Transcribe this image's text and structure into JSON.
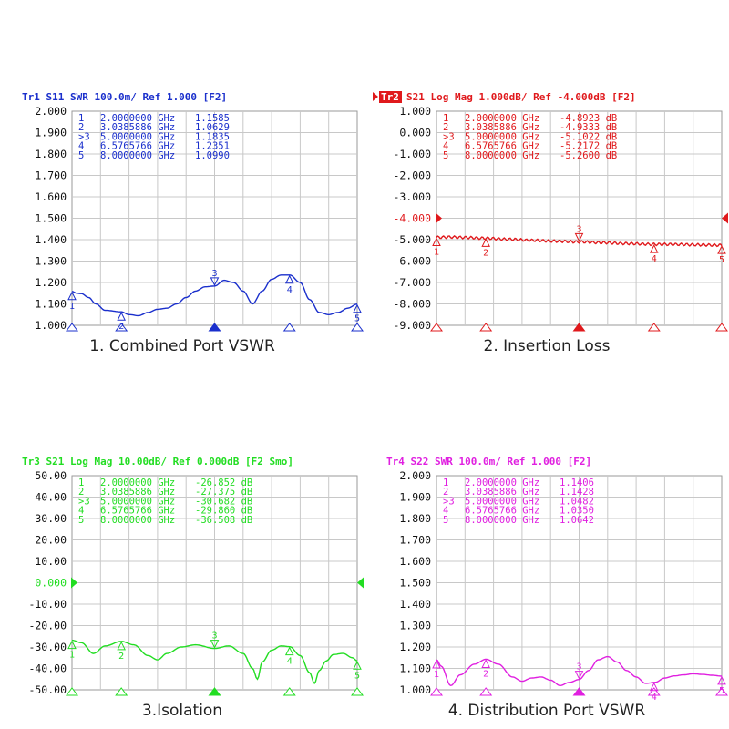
{
  "panels": [
    {
      "header": "Tr1 S11 SWR 100.0m/ Ref 1.000 [F2]",
      "header_tag": "",
      "color": "#1a2fcc",
      "caption": "1. Combined Port VSWR",
      "chart_data": {
        "type": "line",
        "xlim": [
          2.0,
          8.0
        ],
        "ylim": [
          1.0,
          2.0
        ],
        "yticks": [
          "2.000",
          "1.900",
          "1.800",
          "1.700",
          "1.600",
          "1.500",
          "1.400",
          "1.300",
          "1.200",
          "1.100",
          "1.000"
        ],
        "ref_label": "",
        "ref_value": null,
        "x": [
          2.0,
          2.1,
          2.2,
          2.35,
          2.5,
          2.7,
          3.04,
          3.2,
          3.4,
          3.6,
          3.8,
          4.0,
          4.2,
          4.4,
          4.6,
          4.8,
          5.0,
          5.2,
          5.4,
          5.6,
          5.8,
          6.0,
          6.2,
          6.4,
          6.58,
          6.8,
          7.0,
          7.2,
          7.4,
          7.6,
          7.8,
          8.0
        ],
        "y": [
          1.1585,
          1.15,
          1.148,
          1.13,
          1.1,
          1.07,
          1.0629,
          1.05,
          1.045,
          1.06,
          1.075,
          1.08,
          1.1,
          1.13,
          1.16,
          1.18,
          1.1835,
          1.21,
          1.2,
          1.16,
          1.1,
          1.16,
          1.215,
          1.235,
          1.2351,
          1.2,
          1.12,
          1.06,
          1.05,
          1.06,
          1.08,
          1.099
        ],
        "markers": [
          {
            "n": "1",
            "freq": "2.0000000 GHz",
            "val": "1.1585"
          },
          {
            "n": "2",
            "freq": "3.0385886 GHz",
            "val": "1.0629"
          },
          {
            "n": "3",
            "freq": "5.0000000 GHz",
            "val": "1.1835"
          },
          {
            "n": "4",
            "freq": "6.5765766 GHz",
            "val": "1.2351"
          },
          {
            "n": "5",
            "freq": "8.0000000 GHz",
            "val": "1.0990"
          }
        ],
        "marker_x": [
          2.0,
          3.0385886,
          5.0,
          6.5765766,
          8.0
        ],
        "marker_y": [
          1.1585,
          1.0629,
          1.1835,
          1.2351,
          1.099
        ],
        "unit": ""
      }
    },
    {
      "header": "S21 Log Mag 1.000dB/ Ref -4.000dB [F2]",
      "header_tag": "Tr2",
      "color": "#e0191c",
      "caption": "2. Insertion Loss",
      "chart_data": {
        "type": "line",
        "xlim": [
          2.0,
          8.0
        ],
        "ylim": [
          -9.0,
          1.0
        ],
        "yticks": [
          "1.000",
          "0.000",
          "-1.000",
          "-2.000",
          "-3.000",
          "-4.000",
          "-5.000",
          "-6.000",
          "-7.000",
          "-8.000",
          "-9.000"
        ],
        "ref_label": "-4.000",
        "ref_value": -4.0,
        "x": [
          2.0,
          2.3,
          2.6,
          3.04,
          3.5,
          4.0,
          4.5,
          5.0,
          5.5,
          6.0,
          6.58,
          7.0,
          7.5,
          8.0
        ],
        "y": [
          -4.8923,
          -4.88,
          -4.9,
          -4.9333,
          -4.98,
          -5.03,
          -5.07,
          -5.1022,
          -5.14,
          -5.18,
          -5.2172,
          -5.22,
          -5.24,
          -5.26
        ],
        "ripple": 0.06,
        "markers": [
          {
            "n": "1",
            "freq": "2.0000000 GHz",
            "val": "-4.8923 dB"
          },
          {
            "n": "2",
            "freq": "3.0385886 GHz",
            "val": "-4.9333 dB"
          },
          {
            "n": "3",
            "freq": "5.0000000 GHz",
            "val": "-5.1022 dB"
          },
          {
            "n": "4",
            "freq": "6.5765766 GHz",
            "val": "-5.2172 dB"
          },
          {
            "n": "5",
            "freq": "8.0000000 GHz",
            "val": "-5.2600 dB"
          }
        ],
        "marker_x": [
          2.0,
          3.0385886,
          5.0,
          6.5765766,
          8.0
        ],
        "marker_y": [
          -4.8923,
          -4.9333,
          -5.1022,
          -5.2172,
          -5.26
        ],
        "unit": ""
      }
    },
    {
      "header": "Tr3 S21 Log Mag 10.00dB/ Ref 0.000dB [F2 Smo]",
      "header_tag": "",
      "color": "#22dd22",
      "caption": "3.Isolation",
      "chart_data": {
        "type": "line",
        "xlim": [
          2.0,
          8.0
        ],
        "ylim": [
          -50.0,
          50.0
        ],
        "yticks": [
          "50.00",
          "40.00",
          "30.00",
          "20.00",
          "10.00",
          "0.000",
          "-10.00",
          "-20.00",
          "-30.00",
          "-40.00",
          "-50.00"
        ],
        "ref_label": "0.000",
        "ref_value": 0.0,
        "x": [
          2.0,
          2.2,
          2.45,
          2.7,
          3.04,
          3.3,
          3.6,
          3.8,
          4.0,
          4.3,
          4.6,
          5.0,
          5.3,
          5.6,
          5.8,
          5.9,
          6.0,
          6.2,
          6.4,
          6.58,
          6.8,
          7.0,
          7.1,
          7.2,
          7.35,
          7.5,
          7.7,
          7.9,
          8.0
        ],
        "y": [
          -26.85,
          -28,
          -33,
          -29.5,
          -27.375,
          -29,
          -34,
          -36,
          -33,
          -30,
          -29,
          -30.68,
          -29.5,
          -33,
          -40,
          -45,
          -37,
          -31.5,
          -29.5,
          -29.86,
          -34,
          -42,
          -47,
          -41,
          -36.5,
          -33.5,
          -33,
          -35,
          -36.5
        ],
        "markers": [
          {
            "n": "1",
            "freq": "2.0000000 GHz",
            "val": "-26.852 dB"
          },
          {
            "n": "2",
            "freq": "3.0385886 GHz",
            "val": "-27.375 dB"
          },
          {
            "n": "3",
            "freq": "5.0000000 GHz",
            "val": "-30.682 dB"
          },
          {
            "n": "4",
            "freq": "6.5765766 GHz",
            "val": "-29.860 dB"
          },
          {
            "n": "5",
            "freq": "8.0000000 GHz",
            "val": "-36.508 dB"
          }
        ],
        "marker_x": [
          2.0,
          3.0385886,
          5.0,
          6.5765766,
          8.0
        ],
        "marker_y": [
          -26.852,
          -27.375,
          -30.682,
          -29.86,
          -36.508
        ],
        "unit": ""
      }
    },
    {
      "header": "Tr4 S22 SWR 100.0m/ Ref 1.000 [F2]",
      "header_tag": "",
      "color": "#e020e0",
      "caption": "4. Distribution  Port VSWR",
      "chart_data": {
        "type": "line",
        "xlim": [
          2.0,
          8.0
        ],
        "ylim": [
          1.0,
          2.0
        ],
        "yticks": [
          "2.000",
          "1.900",
          "1.800",
          "1.700",
          "1.600",
          "1.500",
          "1.400",
          "1.300",
          "1.200",
          "1.100",
          "1.000"
        ],
        "ref_label": "",
        "ref_value": null,
        "x": [
          2.0,
          2.1,
          2.3,
          2.5,
          2.8,
          3.04,
          3.3,
          3.6,
          3.8,
          4.0,
          4.2,
          4.4,
          4.6,
          4.8,
          5.0,
          5.2,
          5.4,
          5.6,
          5.8,
          6.0,
          6.2,
          6.4,
          6.6,
          6.8,
          7.0,
          7.2,
          7.4,
          7.6,
          7.8,
          8.0
        ],
        "y": [
          1.1406,
          1.11,
          1.02,
          1.07,
          1.12,
          1.1428,
          1.12,
          1.06,
          1.04,
          1.055,
          1.06,
          1.045,
          1.02,
          1.035,
          1.0482,
          1.09,
          1.14,
          1.155,
          1.13,
          1.09,
          1.06,
          1.03,
          1.035,
          1.055,
          1.065,
          1.07,
          1.075,
          1.072,
          1.068,
          1.064
        ],
        "markers": [
          {
            "n": "1",
            "freq": "2.0000000 GHz",
            "val": "1.1406"
          },
          {
            "n": "2",
            "freq": "3.0385886 GHz",
            "val": "1.1428"
          },
          {
            "n": "3",
            "freq": "5.0000000 GHz",
            "val": "1.0482"
          },
          {
            "n": "4",
            "freq": "6.5765766 GHz",
            "val": "1.0350"
          },
          {
            "n": "5",
            "freq": "8.0000000 GHz",
            "val": "1.0642"
          }
        ],
        "marker_x": [
          2.0,
          3.0385886,
          5.0,
          6.5765766,
          8.0
        ],
        "marker_y": [
          1.1406,
          1.1428,
          1.0482,
          1.035,
          1.0642
        ],
        "unit": ""
      }
    }
  ],
  "active_marker_prefix": ">"
}
